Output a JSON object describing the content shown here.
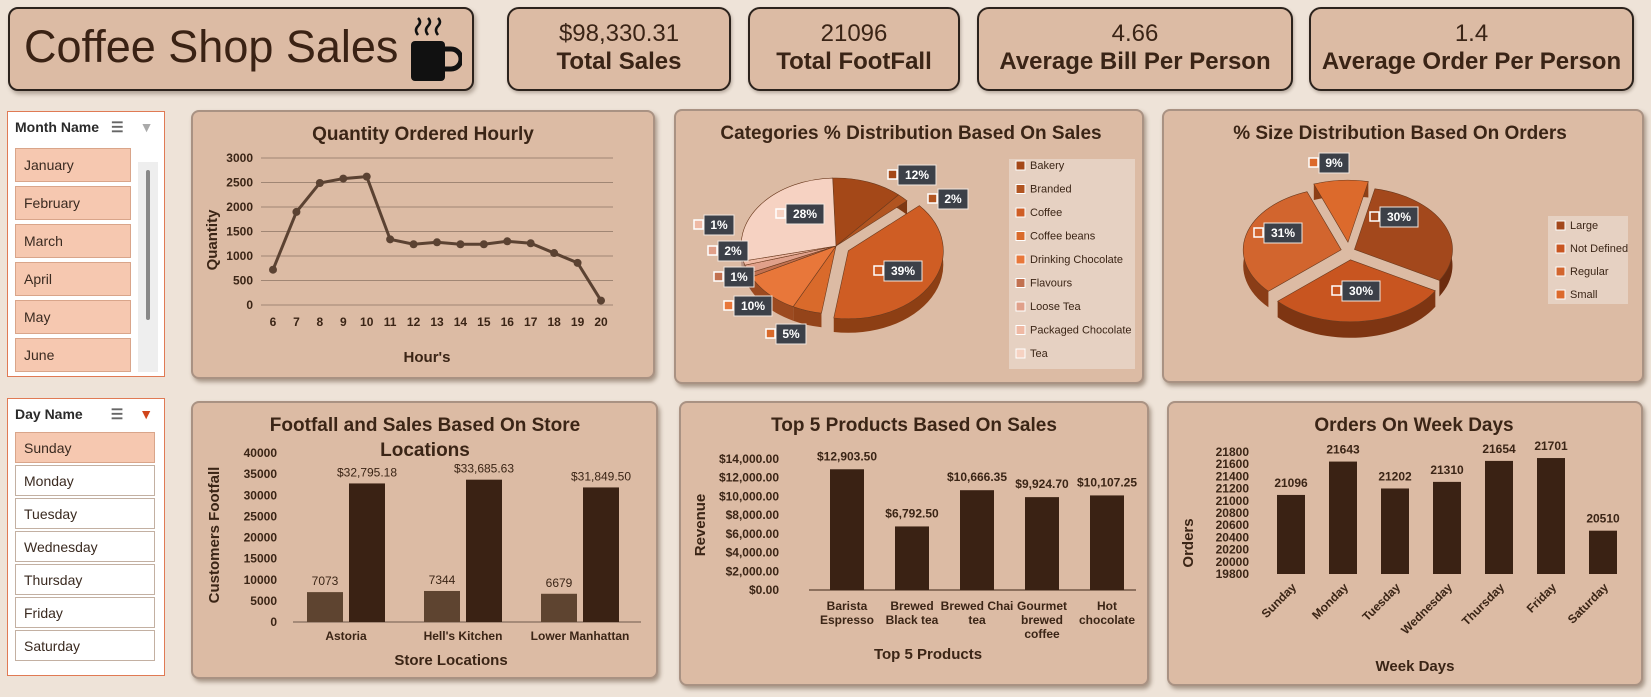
{
  "title": {
    "text": "Coffee Shop Sales",
    "icon": "coffee-cup-icon"
  },
  "kpis": [
    {
      "value": "$98,330.31",
      "label": "Total Sales"
    },
    {
      "value": "21096",
      "label": "Total FootFall"
    },
    {
      "value": "4.66",
      "label": "Average Bill Per Person"
    },
    {
      "value": "1.4",
      "label": "Average Order Per Person"
    }
  ],
  "month_slicer": {
    "header": "Month Name",
    "items": [
      "January",
      "February",
      "March",
      "April",
      "May",
      "June"
    ]
  },
  "day_slicer": {
    "header": "Day Name",
    "items": [
      "Sunday",
      "Monday",
      "Tuesday",
      "Wednesday",
      "Thursday",
      "Friday",
      "Saturday"
    ],
    "selected": "Sunday"
  },
  "colors": {
    "background": "#eee3d8",
    "panel": "#dcbba4",
    "dark_brown": "#3a2214",
    "mid_brown": "#5e4430",
    "line_brown": "#5b4232",
    "slicer_selected": "#f6c8b0",
    "slicer_border": "#e07a54"
  },
  "chart_data": [
    {
      "type": "line",
      "title": "Quantity Ordered Hourly",
      "xlabel": "Hour's",
      "ylabel": "Quantity",
      "x": [
        6,
        7,
        8,
        9,
        10,
        11,
        12,
        13,
        14,
        15,
        16,
        17,
        18,
        19,
        20
      ],
      "values": [
        720,
        1900,
        2490,
        2580,
        2620,
        1340,
        1240,
        1280,
        1240,
        1240,
        1300,
        1260,
        1060,
        860,
        90
      ],
      "ylim": [
        0,
        3000
      ],
      "yticks": [
        0,
        500,
        1000,
        1500,
        2000,
        2500,
        3000
      ],
      "grid": true
    },
    {
      "type": "pie",
      "title": "Categories % Distribution Based On Sales",
      "categories": [
        "Bakery",
        "Branded",
        "Coffee",
        "Coffee beans",
        "Drinking Chocolate",
        "Flavours",
        "Loose Tea",
        "Packaged Chocolate",
        "Tea"
      ],
      "values": [
        12,
        2,
        39,
        5,
        10,
        1,
        2,
        1,
        28
      ],
      "labels": [
        "12%",
        "2%",
        "39%",
        "5%",
        "10%",
        "1%",
        "2%",
        "1%",
        "28%"
      ],
      "legend": "right"
    },
    {
      "type": "pie",
      "title": "% Size Distribution Based On Orders",
      "categories": [
        "Large",
        "Not Defined",
        "Regular",
        "Small"
      ],
      "values": [
        30,
        30,
        31,
        9
      ],
      "labels": [
        "30%",
        "30%",
        "31%",
        "9%"
      ],
      "legend": "right"
    },
    {
      "type": "bar",
      "title": "Footfall and Sales Based On Store Locations",
      "xlabel": "Store Locations",
      "ylabel": "Customers Footfall",
      "categories": [
        "Astoria",
        "Hell's Kitchen",
        "Lower Manhattan"
      ],
      "series": [
        {
          "values": [
            7073,
            7344,
            6679
          ],
          "labels": [
            "7073",
            "7344",
            "6679"
          ]
        },
        {
          "values": [
            32795.18,
            33685.63,
            31849.5
          ],
          "labels": [
            "$32,795.18",
            "$33,685.63",
            "$31,849.50"
          ]
        }
      ],
      "ylim": [
        0,
        40000
      ],
      "yticks": [
        0,
        5000,
        10000,
        15000,
        20000,
        25000,
        30000,
        35000,
        40000
      ]
    },
    {
      "type": "bar",
      "title": "Top 5 Products Based On Sales",
      "xlabel": "Top 5 Products",
      "ylabel": "Revenue",
      "categories": [
        "Barista Espresso",
        "Brewed Black tea",
        "Brewed Chai tea",
        "Gourmet brewed coffee",
        "Hot chocolate"
      ],
      "category_lines": [
        [
          "Barista",
          "Espresso"
        ],
        [
          "Brewed",
          "Black tea"
        ],
        [
          "Brewed Chai",
          "tea"
        ],
        [
          "Gourmet",
          "brewed",
          "coffee"
        ],
        [
          "Hot",
          "chocolate"
        ]
      ],
      "values": [
        12903.5,
        6792.5,
        10666.35,
        9924.7,
        10107.25
      ],
      "labels": [
        "$12,903.50",
        "$6,792.50",
        "$10,666.35",
        "$9,924.70",
        "$10,107.25"
      ],
      "ylim": [
        0,
        14000
      ],
      "yticks": [
        "$0.00",
        "$2,000.00",
        "$4,000.00",
        "$6,000.00",
        "$8,000.00",
        "$10,000.00",
        "$12,000.00",
        "$14,000.00"
      ]
    },
    {
      "type": "bar",
      "title": "Orders On Week Days",
      "xlabel": "Week Days",
      "ylabel": "Orders",
      "categories": [
        "Sunday",
        "Monday",
        "Tuesday",
        "Wednesday",
        "Thursday",
        "Friday",
        "Saturday"
      ],
      "values": [
        21096,
        21643,
        21202,
        21310,
        21654,
        21701,
        20510
      ],
      "ylim": [
        19800,
        21800
      ],
      "yticks": [
        19800,
        20000,
        20200,
        20400,
        20600,
        20800,
        21000,
        21200,
        21400,
        21600,
        21800
      ]
    }
  ]
}
